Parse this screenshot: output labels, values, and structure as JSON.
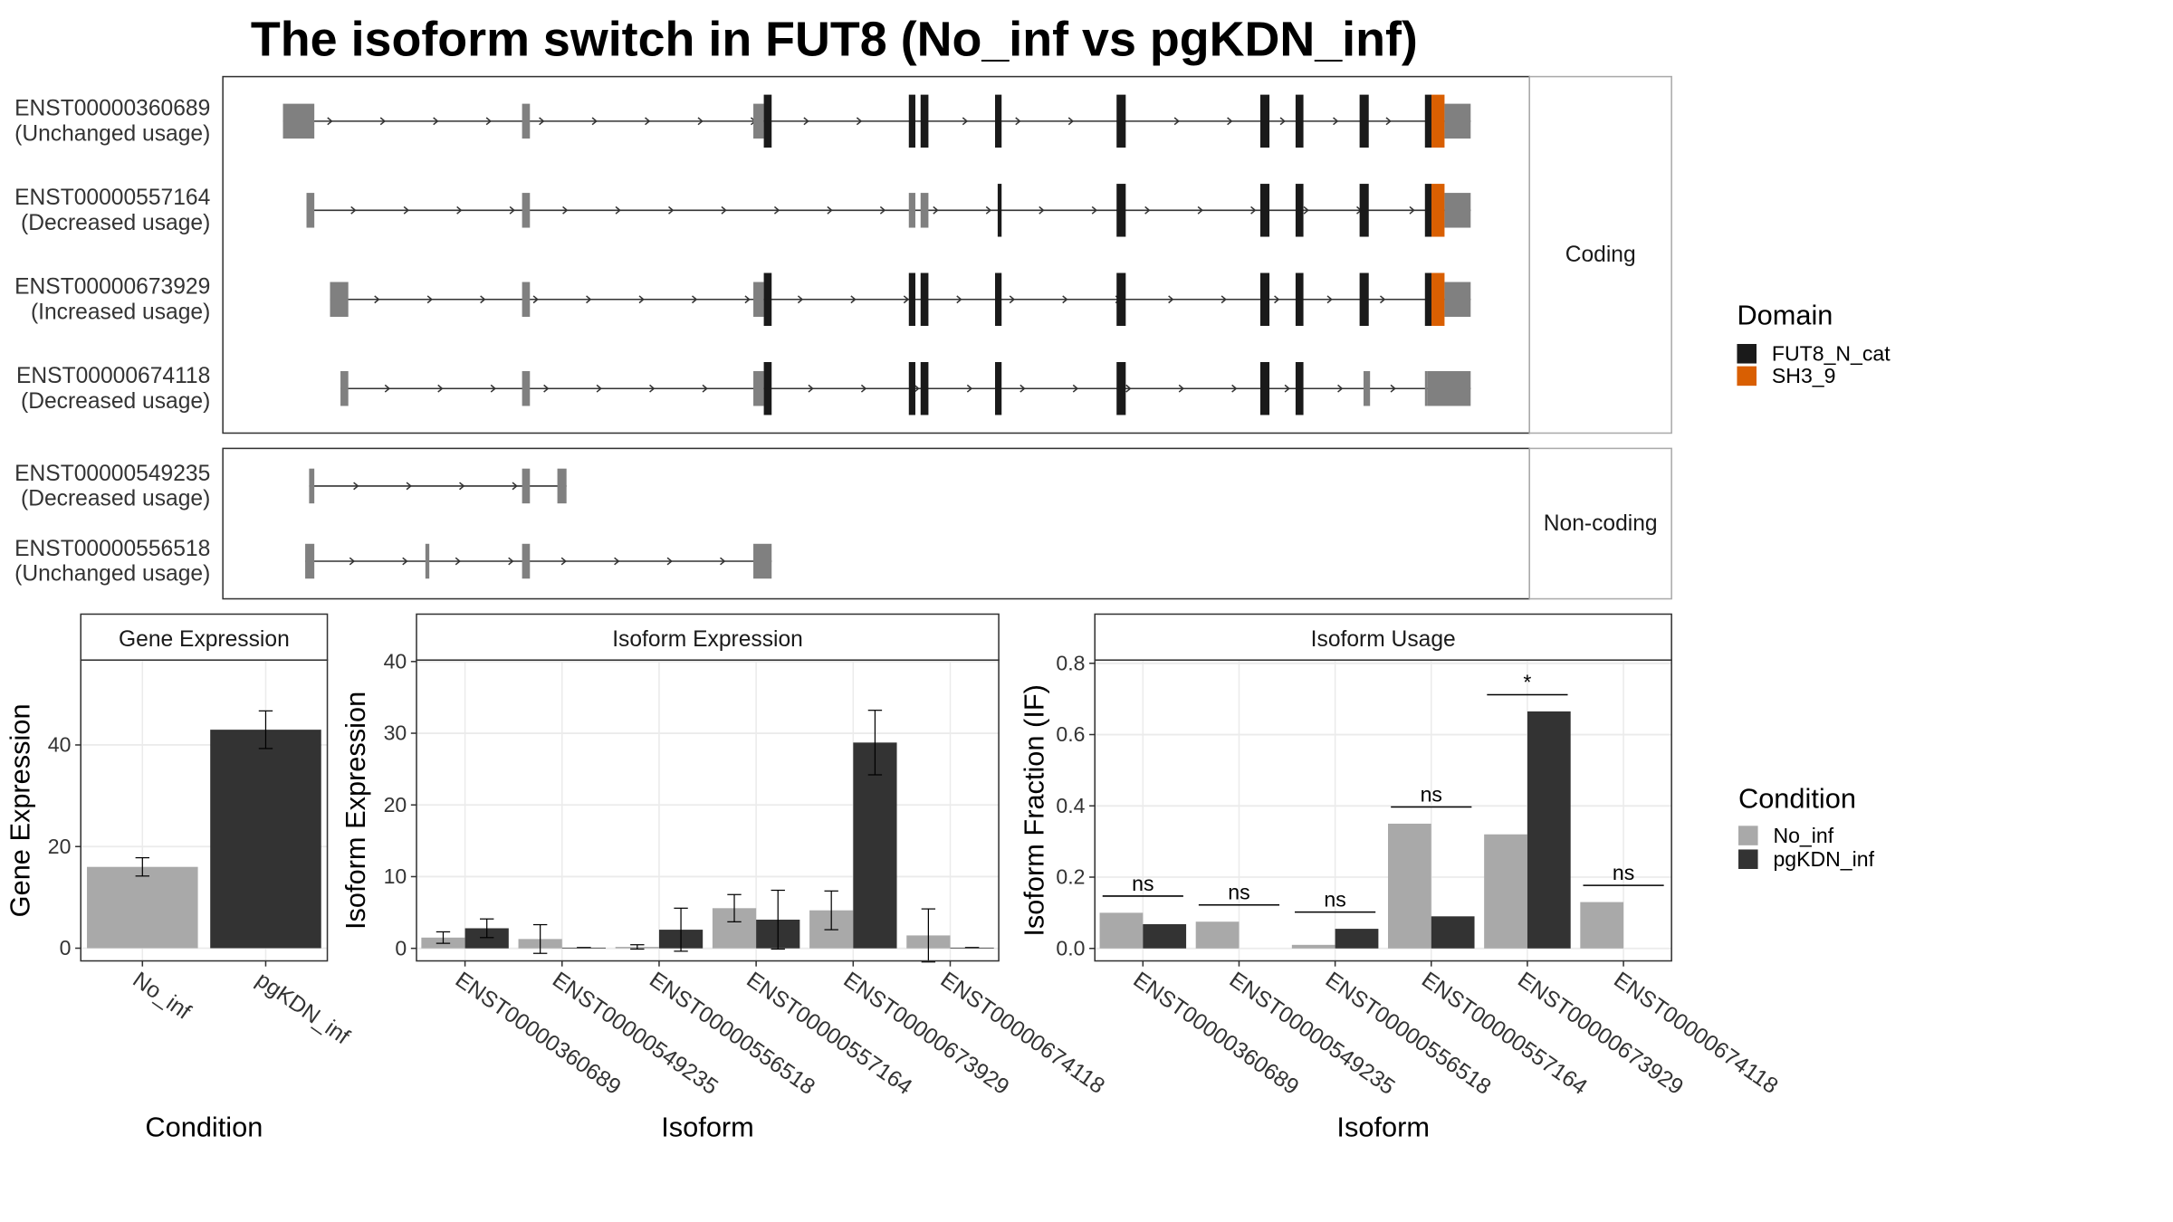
{
  "title": "The isoform switch in FUT8 (No_inf vs pgKDN_inf)",
  "chart_data": [
    {
      "type": "gene_structure",
      "xlim": [
        0,
        1000
      ],
      "utr_color": "#808080",
      "legend_title": "Domain",
      "domains": [
        {
          "name": "FUT8_N_cat",
          "color": "#1a1a1a"
        },
        {
          "name": "SH3_9",
          "color": "#d95f02"
        }
      ],
      "groups": [
        {
          "name": "Coding",
          "transcripts": [
            {
              "name": "ENST00000360689",
              "label": "(Unchanged usage)",
              "exons": [
                {
                  "start": 46,
                  "end": 70
                },
                {
                  "start": 229,
                  "end": 235
                },
                {
                  "start": 406,
                  "end": 414
                },
                {
                  "start": 414,
                  "end": 420,
                  "domain": 0
                },
                {
                  "start": 525,
                  "end": 530,
                  "domain": 0
                },
                {
                  "start": 534,
                  "end": 540,
                  "domain": 0
                },
                {
                  "start": 591,
                  "end": 596,
                  "domain": 0
                },
                {
                  "start": 684,
                  "end": 691,
                  "domain": 0
                },
                {
                  "start": 794,
                  "end": 801,
                  "domain": 0
                },
                {
                  "start": 821,
                  "end": 827,
                  "domain": 0
                },
                {
                  "start": 870,
                  "end": 877,
                  "domain": 0
                },
                {
                  "start": 920,
                  "end": 925,
                  "domain": 0
                },
                {
                  "start": 925,
                  "end": 935,
                  "domain": 1
                },
                {
                  "start": 935,
                  "end": 955
                }
              ]
            },
            {
              "name": "ENST00000557164",
              "label": "(Decreased usage)",
              "exons": [
                {
                  "start": 64,
                  "end": 70
                },
                {
                  "start": 229,
                  "end": 235
                },
                {
                  "start": 525,
                  "end": 530
                },
                {
                  "start": 534,
                  "end": 540
                },
                {
                  "start": 593,
                  "end": 596,
                  "domain": 0
                },
                {
                  "start": 684,
                  "end": 691,
                  "domain": 0
                },
                {
                  "start": 794,
                  "end": 801,
                  "domain": 0
                },
                {
                  "start": 821,
                  "end": 827,
                  "domain": 0
                },
                {
                  "start": 870,
                  "end": 877,
                  "domain": 0
                },
                {
                  "start": 920,
                  "end": 925,
                  "domain": 0
                },
                {
                  "start": 925,
                  "end": 935,
                  "domain": 1
                },
                {
                  "start": 935,
                  "end": 955
                }
              ]
            },
            {
              "name": "ENST00000673929",
              "label": "(Increased usage)",
              "exons": [
                {
                  "start": 82,
                  "end": 96
                },
                {
                  "start": 229,
                  "end": 235
                },
                {
                  "start": 406,
                  "end": 414
                },
                {
                  "start": 414,
                  "end": 420,
                  "domain": 0
                },
                {
                  "start": 525,
                  "end": 530,
                  "domain": 0
                },
                {
                  "start": 534,
                  "end": 540,
                  "domain": 0
                },
                {
                  "start": 591,
                  "end": 596,
                  "domain": 0
                },
                {
                  "start": 684,
                  "end": 691,
                  "domain": 0
                },
                {
                  "start": 794,
                  "end": 801,
                  "domain": 0
                },
                {
                  "start": 821,
                  "end": 827,
                  "domain": 0
                },
                {
                  "start": 870,
                  "end": 877,
                  "domain": 0
                },
                {
                  "start": 920,
                  "end": 925,
                  "domain": 0
                },
                {
                  "start": 925,
                  "end": 935,
                  "domain": 1
                },
                {
                  "start": 935,
                  "end": 955
                }
              ]
            },
            {
              "name": "ENST00000674118",
              "label": "(Decreased usage)",
              "exons": [
                {
                  "start": 90,
                  "end": 96
                },
                {
                  "start": 229,
                  "end": 235
                },
                {
                  "start": 406,
                  "end": 414
                },
                {
                  "start": 414,
                  "end": 420,
                  "domain": 0
                },
                {
                  "start": 525,
                  "end": 530,
                  "domain": 0
                },
                {
                  "start": 534,
                  "end": 540,
                  "domain": 0
                },
                {
                  "start": 591,
                  "end": 596,
                  "domain": 0
                },
                {
                  "start": 684,
                  "end": 691,
                  "domain": 0
                },
                {
                  "start": 794,
                  "end": 801,
                  "domain": 0
                },
                {
                  "start": 821,
                  "end": 827,
                  "domain": 0
                },
                {
                  "start": 873,
                  "end": 878
                },
                {
                  "start": 920,
                  "end": 922
                },
                {
                  "start": 922,
                  "end": 955
                }
              ]
            }
          ]
        },
        {
          "name": "Non-coding",
          "transcripts": [
            {
              "name": "ENST00000549235",
              "label": "(Decreased usage)",
              "exons": [
                {
                  "start": 66,
                  "end": 70
                },
                {
                  "start": 229,
                  "end": 235
                },
                {
                  "start": 256,
                  "end": 263
                }
              ]
            },
            {
              "name": "ENST00000556518",
              "label": "(Unchanged usage)",
              "exons": [
                {
                  "start": 63,
                  "end": 70
                },
                {
                  "start": 155,
                  "end": 158
                },
                {
                  "start": 229,
                  "end": 235
                },
                {
                  "start": 406,
                  "end": 420
                }
              ]
            }
          ]
        }
      ]
    },
    {
      "type": "bar",
      "title": "Gene Expression",
      "xlabel": "Condition",
      "ylabel": "Gene Expression",
      "categories": [
        "No_inf",
        "pgKDN_inf"
      ],
      "values": [
        16,
        43
      ],
      "errors": [
        1.8,
        3.7
      ],
      "colors": [
        "#a9a9a9",
        "#333333"
      ],
      "ylim": [
        -2.5,
        56.7
      ],
      "yticks": [
        0,
        20,
        40
      ],
      "grid": true
    },
    {
      "type": "grouped_bar",
      "title": "Isoform Expression",
      "xlabel": "Isoform",
      "ylabel": "Isoform Expression",
      "categories": [
        "ENST00000360689",
        "ENST00000549235",
        "ENST00000556518",
        "ENST00000557164",
        "ENST00000673929",
        "ENST00000674118"
      ],
      "series": [
        {
          "name": "No_inf",
          "color": "#a9a9a9",
          "values": [
            1.5,
            1.3,
            0.2,
            5.6,
            5.3,
            1.8
          ],
          "errors": [
            0.8,
            2,
            0.3,
            1.9,
            2.7,
            3.7
          ]
        },
        {
          "name": "pgKDN_inf",
          "color": "#333333",
          "values": [
            2.8,
            0.1,
            2.6,
            4.0,
            28.7,
            0.1
          ],
          "errors": [
            1.3,
            0,
            3,
            4.1,
            4.5,
            0
          ]
        }
      ],
      "ylim": [
        -1.75,
        40.2
      ],
      "yticks": [
        0,
        10,
        20,
        30,
        40
      ],
      "grid": true,
      "legend_title": "Condition"
    },
    {
      "type": "grouped_bar",
      "title": "Isoform Usage",
      "xlabel": "Isoform",
      "ylabel": "Isoform Fraction (IF)",
      "categories": [
        "ENST00000360689",
        "ENST00000549235",
        "ENST00000556518",
        "ENST00000557164",
        "ENST00000673929",
        "ENST00000674118"
      ],
      "series": [
        {
          "name": "No_inf",
          "color": "#a9a9a9",
          "values": [
            0.1,
            0.075,
            0.01,
            0.35,
            0.32,
            0.13
          ]
        },
        {
          "name": "pgKDN_inf",
          "color": "#333333",
          "values": [
            0.068,
            0,
            0.055,
            0.09,
            0.665,
            0
          ]
        }
      ],
      "significance": [
        "ns",
        "ns",
        "ns",
        "ns",
        "*",
        "ns"
      ],
      "ylim": [
        -0.035,
        0.809
      ],
      "yticks": [
        {
          "value": 0,
          "label": "0.0"
        },
        {
          "value": 0.2,
          "label": "0.2"
        },
        {
          "value": 0.4,
          "label": "0.4"
        },
        {
          "value": 0.6,
          "label": "0.6"
        },
        {
          "value": 0.8,
          "label": "0.8"
        }
      ],
      "grid": true
    }
  ]
}
